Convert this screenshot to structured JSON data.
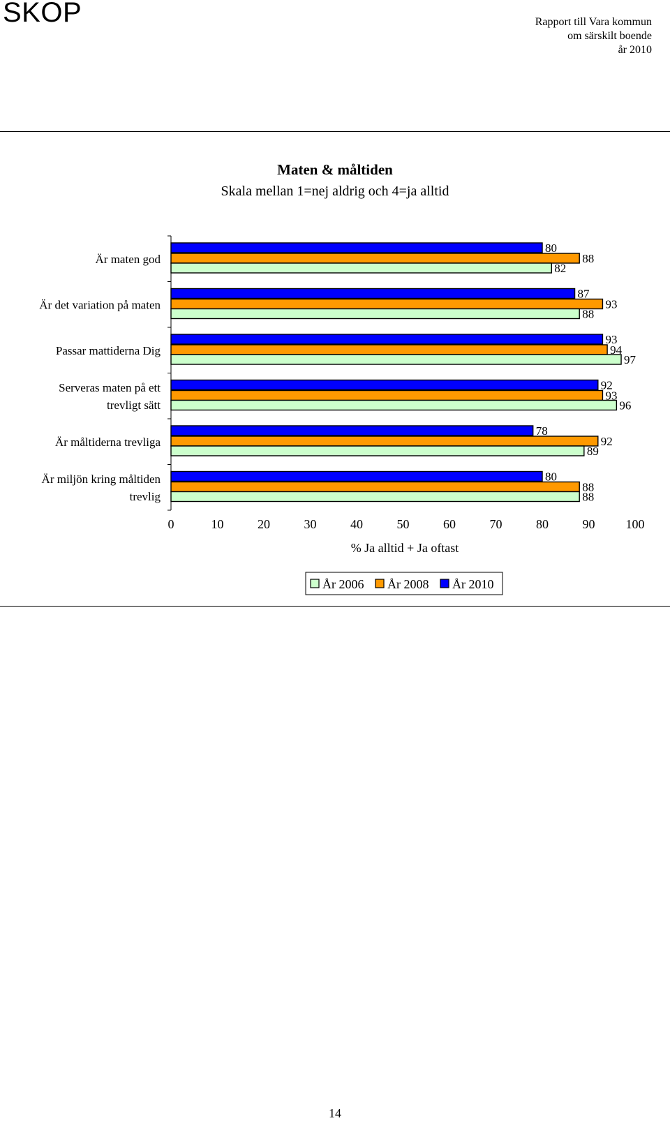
{
  "header": {
    "logo": "SKOP",
    "report_lines": [
      "Rapport till Vara kommun",
      "om särskilt boende",
      "år 2010"
    ]
  },
  "chart_data": {
    "type": "bar",
    "orientation": "horizontal",
    "title": "Maten & måltiden",
    "subtitle": "Skala mellan 1=nej aldrig och 4=ja alltid",
    "categories": [
      "Är maten god",
      "Är det variation på maten",
      "Passar mattiderna Dig",
      "Serveras maten på ett trevligt sätt",
      "Är måltiderna trevliga",
      "Är miljön kring måltiden trevlig"
    ],
    "category_lines": [
      [
        "Är maten god"
      ],
      [
        "Är det variation på maten"
      ],
      [
        "Passar mattiderna Dig"
      ],
      [
        "Serveras maten på ett",
        "trevligt sätt"
      ],
      [
        "Är måltiderna trevliga"
      ],
      [
        "Är miljön kring måltiden",
        "trevlig"
      ]
    ],
    "series": [
      {
        "name": "År 2010",
        "color": "#0000ff",
        "values": [
          80,
          87,
          93,
          92,
          78,
          80
        ]
      },
      {
        "name": "År 2008",
        "color": "#ff9900",
        "values": [
          88,
          93,
          94,
          93,
          92,
          88
        ]
      },
      {
        "name": "År 2006",
        "color": "#ccffcc",
        "values": [
          82,
          88,
          97,
          96,
          89,
          88
        ]
      }
    ],
    "legend_order": [
      "År 2006",
      "År 2008",
      "År 2010"
    ],
    "xlabel": "% Ja alltid + Ja oftast",
    "xlim": [
      0,
      100
    ],
    "xticks": [
      0,
      10,
      20,
      30,
      40,
      50,
      60,
      70,
      80,
      90,
      100
    ],
    "grid": false,
    "legend_position": "bottom"
  },
  "footer": {
    "page_number": "14"
  }
}
